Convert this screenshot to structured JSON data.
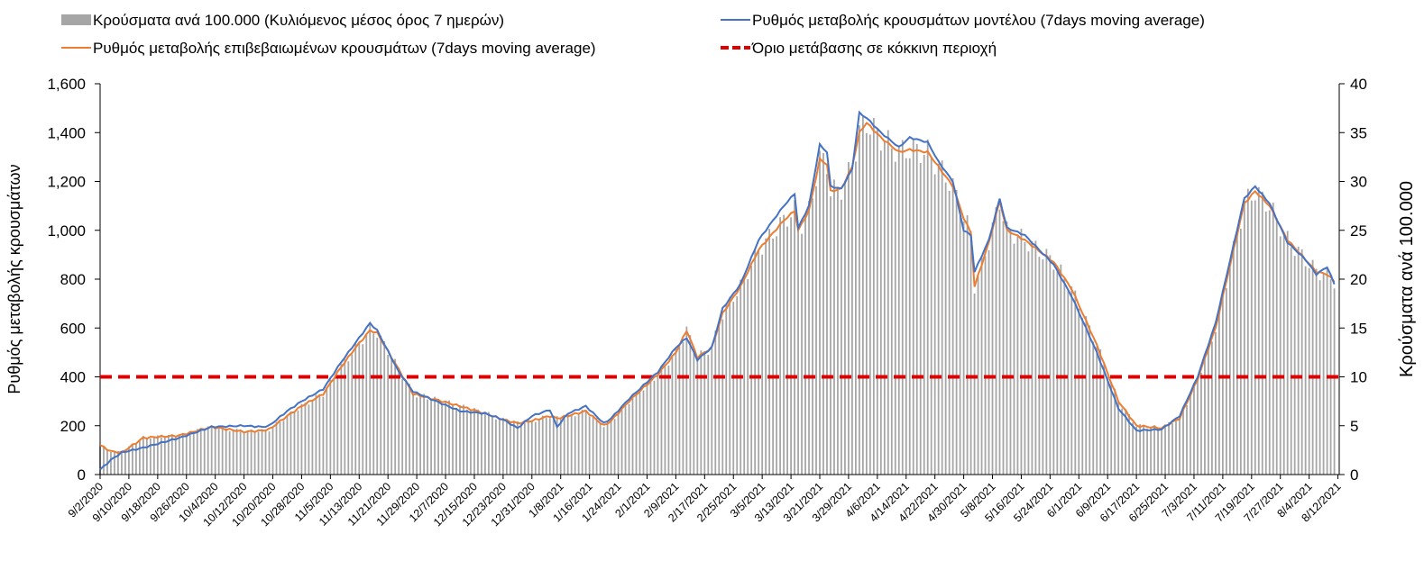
{
  "chart_data": {
    "type": "bar+line",
    "legend": {
      "bars": "Κρούσματα ανά 100.000 (Κυλιόμενος μέσος όρος 7 ημερών)",
      "model": "Ρυθμός μεταβολής κρουσμάτων μοντέλου (7days moving average)",
      "confirmed": "Ρυθμός μεταβολής επιβεβαιωμένων κρουσμάτων (7days moving average)",
      "threshold": "Όριο μετάβασης σε κόκκινη περιοχή"
    },
    "legend_placement": "top",
    "ylabel": "Ρυθμός μεταβολής κρουσμάτων",
    "y2label": "Κρούσματα ανά 100.000",
    "ylim": [
      0,
      1600
    ],
    "y2lim": [
      0,
      40
    ],
    "yticks": [
      "0",
      "200",
      "400",
      "600",
      "800",
      "1,000",
      "1,200",
      "1,400",
      "1,600"
    ],
    "y2ticks": [
      "0",
      "5",
      "10",
      "15",
      "20",
      "25",
      "30",
      "35",
      "40"
    ],
    "start_date": "9/2/2020",
    "x_tick_labels": [
      "9/2/2020",
      "9/10/2020",
      "9/18/2020",
      "9/26/2020",
      "10/4/2020",
      "10/12/2020",
      "10/20/2020",
      "10/28/2020",
      "11/5/2020",
      "11/13/2020",
      "11/21/2020",
      "11/29/2020",
      "12/7/2020",
      "12/15/2020",
      "12/23/2020",
      "12/31/2020",
      "1/8/2021",
      "1/16/2021",
      "1/24/2021",
      "2/1/2021",
      "2/9/2021",
      "2/17/2021",
      "2/25/2021",
      "3/5/2021",
      "3/13/2021",
      "3/21/2021",
      "3/29/2021",
      "4/6/2021",
      "4/14/2021",
      "4/22/2021",
      "4/30/2021",
      "5/8/2021",
      "5/16/2021",
      "5/24/2021",
      "6/1/2021",
      "6/9/2021",
      "6/17/2021",
      "6/25/2021",
      "7/3/2021",
      "7/11/2021",
      "7/19/2021",
      "7/27/2021",
      "8/4/2021",
      "8/12/2021"
    ],
    "x_tick_step_days": 8,
    "days_since_start": [
      0,
      3,
      6,
      12,
      22,
      31,
      40,
      45,
      47,
      52,
      56,
      62,
      67,
      71,
      75,
      77,
      83,
      87,
      95,
      100,
      107,
      112,
      116,
      120,
      125,
      127,
      130,
      135,
      140,
      142,
      147,
      155,
      160,
      163,
      166,
      170,
      173,
      178,
      183,
      190,
      193,
      194,
      197,
      200,
      202,
      203,
      206,
      209,
      211,
      213,
      217,
      222,
      225,
      230,
      233,
      237,
      240,
      242,
      243,
      247,
      250,
      252,
      257,
      265,
      270,
      277,
      283,
      288,
      295,
      300,
      305,
      310,
      315,
      318,
      321,
      325,
      330,
      335,
      338,
      341,
      343
    ],
    "series": [
      {
        "name": "model",
        "axis": "left",
        "color": "#4472c4",
        "values": [
          20,
          60,
          90,
          110,
          150,
          195,
          200,
          195,
          200,
          260,
          300,
          350,
          460,
          540,
          620,
          590,
          420,
          340,
          290,
          260,
          250,
          225,
          190,
          240,
          265,
          195,
          250,
          280,
          210,
          230,
          310,
          420,
          520,
          560,
          470,
          520,
          680,
          780,
          960,
          1100,
          1150,
          1010,
          1100,
          1350,
          1320,
          1180,
          1170,
          1250,
          1480,
          1460,
          1400,
          1340,
          1380,
          1360,
          1280,
          1200,
          1000,
          980,
          830,
          960,
          1130,
          1010,
          980,
          860,
          730,
          500,
          270,
          180,
          185,
          240,
          400,
          620,
          940,
          1130,
          1180,
          1110,
          950,
          880,
          820,
          850,
          780
        ]
      },
      {
        "name": "confirmed",
        "axis": "left",
        "color": "#ed7d31",
        "values": [
          120,
          95,
          90,
          150,
          160,
          195,
          175,
          180,
          185,
          240,
          280,
          330,
          440,
          520,
          590,
          580,
          430,
          330,
          300,
          280,
          250,
          225,
          210,
          220,
          240,
          230,
          240,
          260,
          200,
          220,
          300,
          410,
          500,
          590,
          480,
          520,
          660,
          770,
          920,
          1040,
          1080,
          1000,
          1080,
          1290,
          1270,
          1160,
          1170,
          1260,
          1400,
          1440,
          1380,
          1320,
          1330,
          1320,
          1260,
          1180,
          1050,
          990,
          770,
          950,
          1120,
          1000,
          960,
          870,
          760,
          530,
          300,
          200,
          190,
          230,
          390,
          600,
          920,
          1110,
          1160,
          1100,
          960,
          880,
          830,
          820,
          790
        ]
      },
      {
        "name": "bars",
        "axis": "right",
        "color": "#a6a6a6",
        "values": [
          3,
          2.4,
          2.3,
          3.8,
          4,
          4.9,
          4.4,
          4.5,
          4.6,
          6,
          7,
          8.3,
          11,
          13,
          14.8,
          14.5,
          10.8,
          8.3,
          7.5,
          7,
          6.3,
          5.6,
          5.3,
          5.5,
          6,
          5.8,
          6,
          6.5,
          5,
          5.5,
          7.5,
          10.3,
          12.5,
          14.8,
          12,
          13,
          16.5,
          19.3,
          23,
          26,
          27,
          25,
          27,
          32.3,
          31.8,
          29,
          29.3,
          31.5,
          35,
          36,
          34.5,
          33,
          33.3,
          33,
          31.5,
          29.5,
          26.3,
          24.8,
          19.3,
          23.8,
          28,
          25,
          24,
          21.8,
          19,
          13.3,
          7.5,
          5,
          4.8,
          5.8,
          9.8,
          15,
          23,
          27.8,
          29,
          27.5,
          24,
          22,
          20.8,
          20.5,
          19.8
        ]
      }
    ],
    "threshold": {
      "value": 400,
      "color": "#e00000"
    }
  }
}
